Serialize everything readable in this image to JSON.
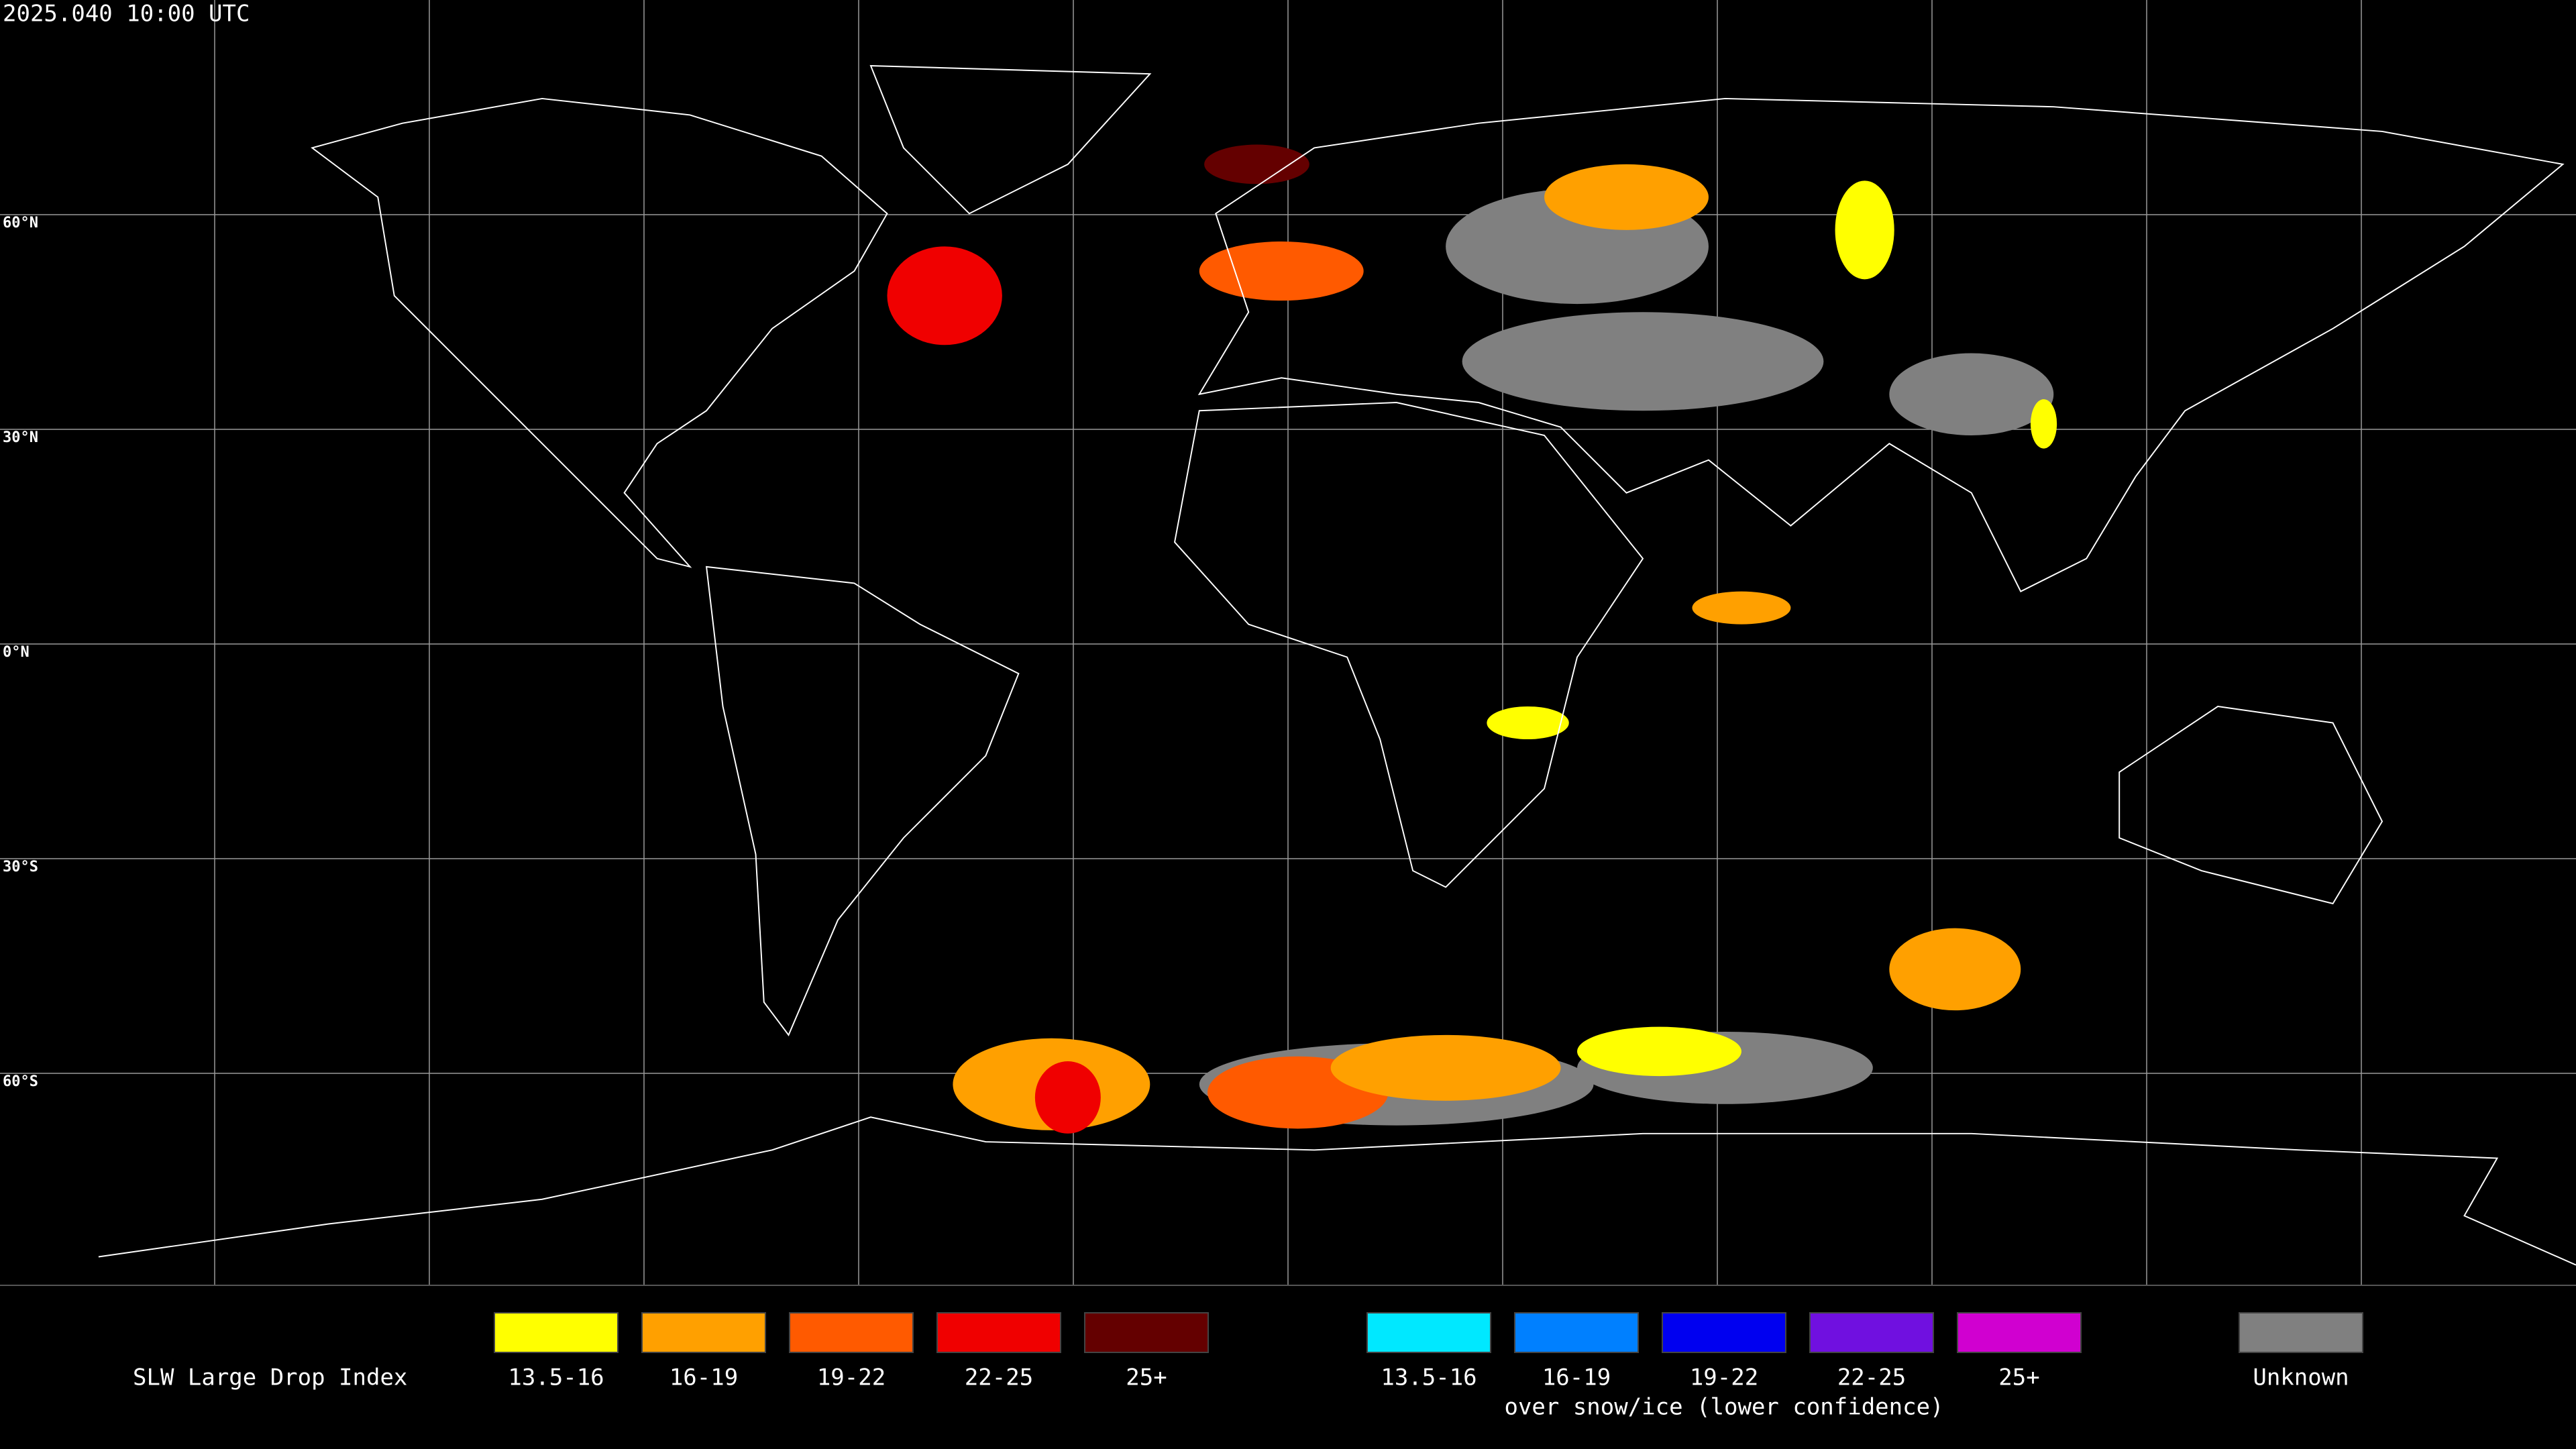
{
  "title": "2025.040 10:00 UTC",
  "map": {
    "lat_labels": [
      "60°N",
      "30°N",
      "0°N",
      "30°S",
      "60°S"
    ]
  },
  "legend": {
    "title": "SLW Large Drop Index",
    "groups": [
      {
        "items": [
          {
            "label": "13.5-16",
            "color": "#ffff00"
          },
          {
            "label": "16-19",
            "color": "#ffa000"
          },
          {
            "label": "19-22",
            "color": "#ff5a00"
          },
          {
            "label": "22-25",
            "color": "#f00000"
          },
          {
            "label": "25+",
            "color": "#640000"
          }
        ]
      },
      {
        "items": [
          {
            "label": "13.5-16",
            "color": "#00e8ff"
          },
          {
            "label": "16-19",
            "color": "#0080ff"
          },
          {
            "label": "19-22",
            "color": "#0000f0"
          },
          {
            "label": "22-25",
            "color": "#7010e0"
          },
          {
            "label": "25+",
            "color": "#d000d0"
          }
        ],
        "caption": "over snow/ice (lower confidence)"
      }
    ],
    "unknown": {
      "label": "Unknown",
      "color": "#808080"
    }
  }
}
